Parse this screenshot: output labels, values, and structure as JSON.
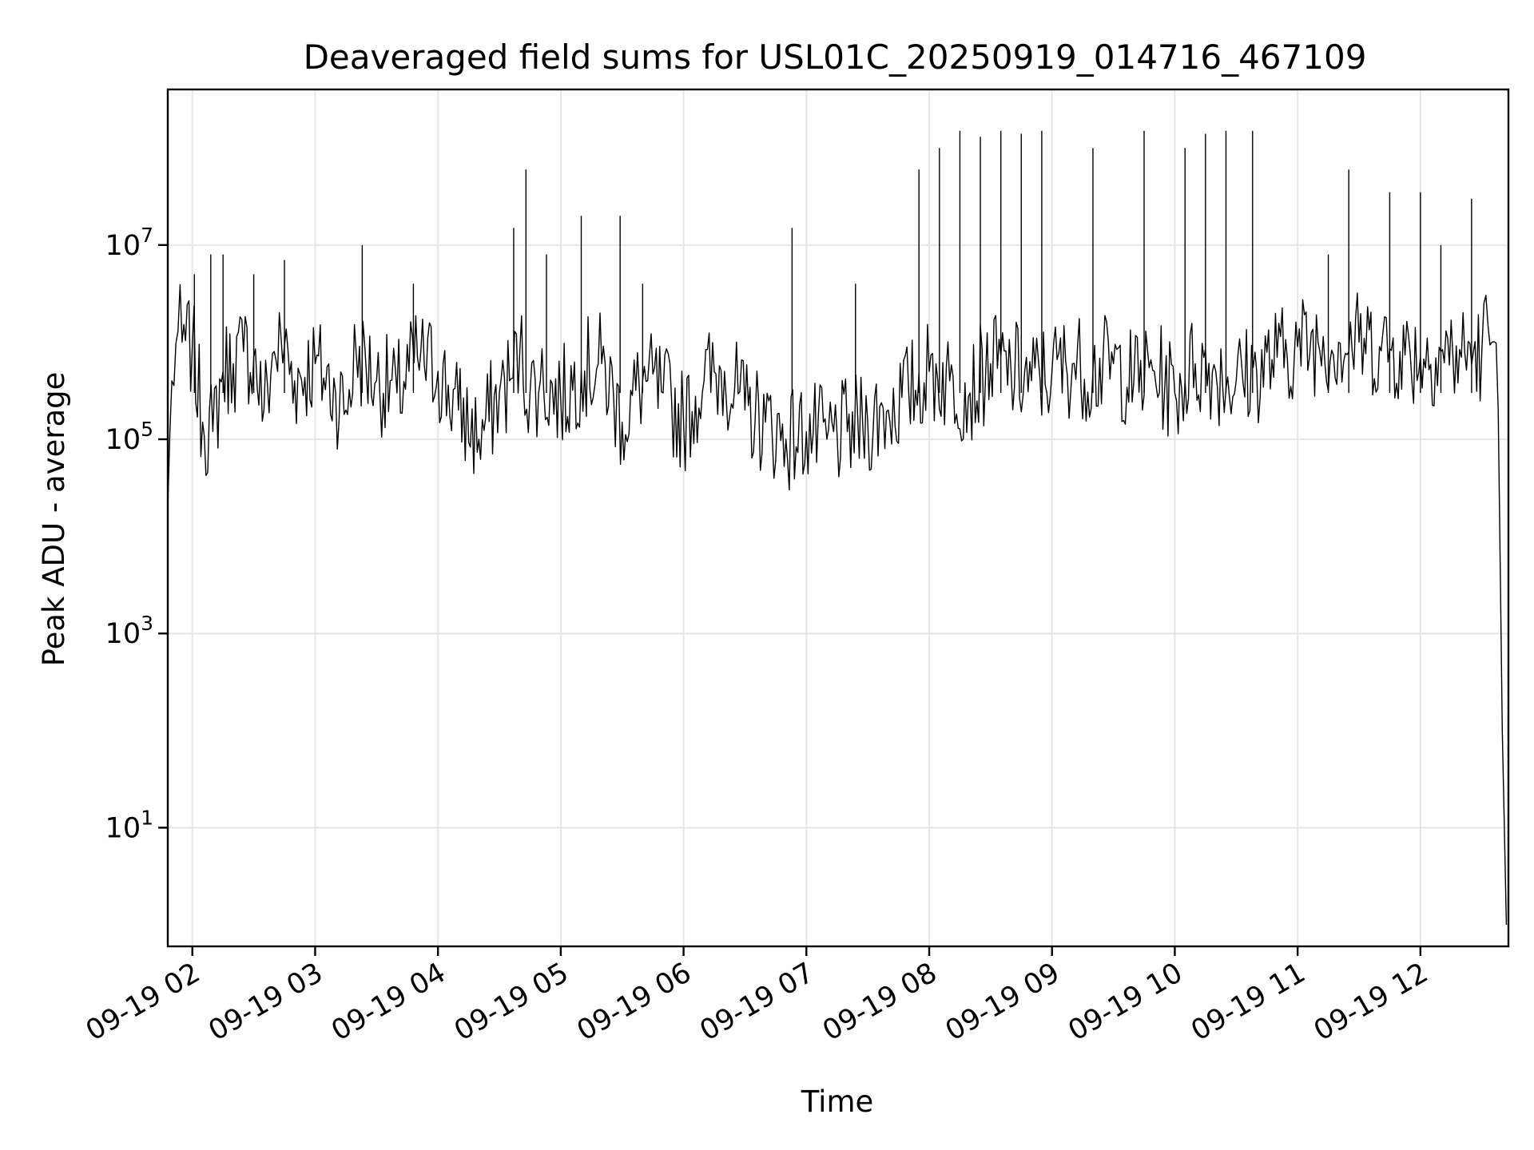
{
  "chart_data": {
    "type": "line",
    "title": "Deaveraged field sums for USL01C_20250919_014716_467109",
    "xlabel": "Time",
    "ylabel": "Peak ADU - average",
    "yscale": "log",
    "grid": true,
    "x_tick_labels": [
      "09-19 02",
      "09-19 03",
      "09-19 04",
      "09-19 05",
      "09-19 06",
      "09-19 07",
      "09-19 08",
      "09-19 09",
      "09-19 10",
      "09-19 11",
      "09-19 12"
    ],
    "x_ticks": [
      "2025-09-19T02:00",
      "2025-09-19T03:00",
      "2025-09-19T04:00",
      "2025-09-19T05:00",
      "2025-09-19T06:00",
      "2025-09-19T07:00",
      "2025-09-19T08:00",
      "2025-09-19T09:00",
      "2025-09-19T10:00",
      "2025-09-19T11:00",
      "2025-09-19T12:00"
    ],
    "xlim": [
      "2025-09-19T01:48",
      "2025-09-19T12:43"
    ],
    "y_ticks": [
      {
        "base": "10",
        "exp": "1",
        "value": 10
      },
      {
        "base": "10",
        "exp": "3",
        "value": 1000
      },
      {
        "base": "10",
        "exp": "5",
        "value": 100000
      },
      {
        "base": "10",
        "exp": "7",
        "value": 10000000
      }
    ],
    "ylim": [
      0.6,
      400000000
    ],
    "series": [
      {
        "color": "#000000",
        "x": [
          "2025-09-19T01:48",
          "2025-09-19T01:50",
          "2025-09-19T01:53",
          "2025-09-19T01:55",
          "2025-09-19T02:00",
          "2025-09-19T02:05",
          "2025-09-19T02:10",
          "2025-09-19T02:15",
          "2025-09-19T02:20",
          "2025-09-19T02:25",
          "2025-09-19T02:30",
          "2025-09-19T02:35",
          "2025-09-19T02:40",
          "2025-09-19T02:45",
          "2025-09-19T02:50",
          "2025-09-19T03:00",
          "2025-09-19T03:10",
          "2025-09-19T03:15",
          "2025-09-19T03:20",
          "2025-09-19T03:30",
          "2025-09-19T03:40",
          "2025-09-19T03:50",
          "2025-09-19T04:00",
          "2025-09-19T04:10",
          "2025-09-19T04:20",
          "2025-09-19T04:30",
          "2025-09-19T04:35",
          "2025-09-19T04:40",
          "2025-09-19T04:45",
          "2025-09-19T04:50",
          "2025-09-19T05:00",
          "2025-09-19T05:10",
          "2025-09-19T05:20",
          "2025-09-19T05:30",
          "2025-09-19T05:40",
          "2025-09-19T05:50",
          "2025-09-19T06:00",
          "2025-09-19T06:10",
          "2025-09-19T06:20",
          "2025-09-19T06:30",
          "2025-09-19T06:40",
          "2025-09-19T06:50",
          "2025-09-19T07:00",
          "2025-09-19T07:10",
          "2025-09-19T07:20",
          "2025-09-19T07:30",
          "2025-09-19T07:40",
          "2025-09-19T07:50",
          "2025-09-19T08:00",
          "2025-09-19T08:10",
          "2025-09-19T08:20",
          "2025-09-19T08:30",
          "2025-09-19T08:40",
          "2025-09-19T08:50",
          "2025-09-19T09:00",
          "2025-09-19T09:10",
          "2025-09-19T09:20",
          "2025-09-19T09:30",
          "2025-09-19T09:40",
          "2025-09-19T09:50",
          "2025-09-19T10:00",
          "2025-09-19T10:10",
          "2025-09-19T10:20",
          "2025-09-19T10:30",
          "2025-09-19T10:40",
          "2025-09-19T10:50",
          "2025-09-19T11:00",
          "2025-09-19T11:10",
          "2025-09-19T11:20",
          "2025-09-19T11:30",
          "2025-09-19T11:40",
          "2025-09-19T11:50",
          "2025-09-19T12:00",
          "2025-09-19T12:10",
          "2025-09-19T12:20",
          "2025-09-19T12:30",
          "2025-09-19T12:33",
          "2025-09-19T12:35",
          "2025-09-19T12:38",
          "2025-09-19T12:40",
          "2025-09-19T12:42"
        ],
        "y": [
          20000,
          400000,
          1300000,
          1000000,
          900000,
          150000,
          120000,
          500000,
          600000,
          800000,
          700000,
          200000,
          800000,
          900000,
          400000,
          600000,
          300000,
          200000,
          800000,
          400000,
          300000,
          700000,
          500000,
          200000,
          100000,
          300000,
          400000,
          800000,
          300000,
          400000,
          250000,
          500000,
          600000,
          150000,
          400000,
          300000,
          150000,
          400000,
          500000,
          200000,
          150000,
          100000,
          120000,
          100000,
          120000,
          150000,
          200000,
          300000,
          500000,
          400000,
          300000,
          600000,
          500000,
          400000,
          500000,
          600000,
          500000,
          600000,
          400000,
          500000,
          300000,
          600000,
          500000,
          400000,
          500000,
          700000,
          900000,
          1000000,
          1000000,
          1000000,
          900000,
          800000,
          700000,
          800000,
          700000,
          800000,
          1500000,
          1000000,
          200000,
          100,
          1
        ]
      }
    ],
    "spikes": [
      {
        "x": "2025-09-19T02:01",
        "y": 5000000
      },
      {
        "x": "2025-09-19T02:09",
        "y": 8000000
      },
      {
        "x": "2025-09-19T02:15",
        "y": 8000000
      },
      {
        "x": "2025-09-19T02:30",
        "y": 5000000
      },
      {
        "x": "2025-09-19T02:45",
        "y": 7000000
      },
      {
        "x": "2025-09-19T03:23",
        "y": 10000000
      },
      {
        "x": "2025-09-19T03:48",
        "y": 4000000
      },
      {
        "x": "2025-09-19T04:37",
        "y": 15000000
      },
      {
        "x": "2025-09-19T04:43",
        "y": 60000000
      },
      {
        "x": "2025-09-19T04:53",
        "y": 8000000
      },
      {
        "x": "2025-09-19T05:10",
        "y": 20000000
      },
      {
        "x": "2025-09-19T05:29",
        "y": 20000000
      },
      {
        "x": "2025-09-19T05:40",
        "y": 4000000
      },
      {
        "x": "2025-09-19T06:53",
        "y": 15000000
      },
      {
        "x": "2025-09-19T07:24",
        "y": 4000000
      },
      {
        "x": "2025-09-19T07:55",
        "y": 60000000
      },
      {
        "x": "2025-09-19T08:05",
        "y": 100000000
      },
      {
        "x": "2025-09-19T08:15",
        "y": 150000000
      },
      {
        "x": "2025-09-19T08:25",
        "y": 130000000
      },
      {
        "x": "2025-09-19T08:35",
        "y": 150000000
      },
      {
        "x": "2025-09-19T08:45",
        "y": 140000000
      },
      {
        "x": "2025-09-19T08:55",
        "y": 150000000
      },
      {
        "x": "2025-09-19T09:20",
        "y": 100000000
      },
      {
        "x": "2025-09-19T09:45",
        "y": 150000000
      },
      {
        "x": "2025-09-19T10:05",
        "y": 100000000
      },
      {
        "x": "2025-09-19T10:15",
        "y": 140000000
      },
      {
        "x": "2025-09-19T10:25",
        "y": 150000000
      },
      {
        "x": "2025-09-19T10:38",
        "y": 150000000
      },
      {
        "x": "2025-09-19T11:15",
        "y": 8000000
      },
      {
        "x": "2025-09-19T11:25",
        "y": 60000000
      },
      {
        "x": "2025-09-19T11:45",
        "y": 35000000
      },
      {
        "x": "2025-09-19T12:00",
        "y": 35000000
      },
      {
        "x": "2025-09-19T12:10",
        "y": 10000000
      },
      {
        "x": "2025-09-19T12:25",
        "y": 30000000
      }
    ]
  }
}
